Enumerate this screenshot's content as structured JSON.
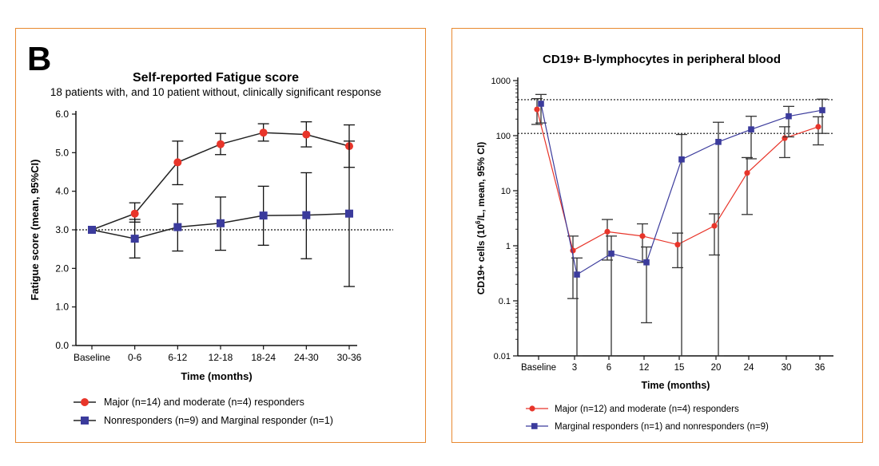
{
  "colors": {
    "frame": "#e8892f",
    "red": "#e8352a",
    "blue": "#3b3b9c",
    "axis": "#111111"
  },
  "chart_data": [
    {
      "type": "line",
      "panel_letter": "B",
      "title": "Self-reported Fatigue score",
      "subtitle": "18 patients with, and 10 patient without, clinically significant response",
      "xlabel": "Time (months)",
      "ylabel": "Fatigue score (mean, 95%CI)",
      "categories": [
        "Baseline",
        "0-6",
        "6-12",
        "12-18",
        "18-24",
        "24-30",
        "30-36"
      ],
      "ylim": [
        0,
        6
      ],
      "yticks": [
        "0.0",
        "1.0",
        "2.0",
        "3.0",
        "4.0",
        "5.0",
        "6.0"
      ],
      "reference_line": 3.0,
      "legend_position": "bottom",
      "series": [
        {
          "name": "Major (n=14) and moderate (n=4) responders",
          "color": "#e8352a",
          "marker": "circle",
          "values": [
            3.0,
            3.42,
            4.75,
            5.22,
            5.52,
            5.47,
            5.17
          ],
          "ci_low": [
            3.0,
            3.2,
            4.17,
            4.95,
            5.3,
            5.15,
            4.62
          ],
          "ci_high": [
            3.0,
            3.7,
            5.3,
            5.5,
            5.75,
            5.8,
            5.72
          ]
        },
        {
          "name": "Nonresponders (n=9) and Marginal responder (n=1)",
          "color": "#3b3b9c",
          "marker": "square",
          "values": [
            3.0,
            2.77,
            3.07,
            3.17,
            3.37,
            3.38,
            3.42
          ],
          "ci_low": [
            3.0,
            2.27,
            2.45,
            2.47,
            2.6,
            2.25,
            1.53
          ],
          "ci_high": [
            3.0,
            3.27,
            3.67,
            3.85,
            4.13,
            4.48,
            5.3
          ]
        }
      ]
    },
    {
      "type": "line",
      "title": "CD19+ B-lymphocytes in peripheral blood",
      "xlabel": "Time (months)",
      "ylabel_pre": "CD19+ cells (10",
      "ylabel_sup": "6",
      "ylabel_post": "/L, mean, 95% CI)",
      "y_scale": "log",
      "ylim": [
        0.01,
        1000
      ],
      "yticks": [
        "0.01",
        "0.1",
        "1",
        "10",
        "100",
        "1000"
      ],
      "categories": [
        "Baseline",
        "3",
        "6",
        "12",
        "15",
        "20",
        "24",
        "30",
        "36"
      ],
      "reference_lines": [
        110,
        450
      ],
      "legend_position": "bottom",
      "series": [
        {
          "name": "Major (n=12) and moderate (n=4) responders",
          "color": "#e8352a",
          "marker": "circle",
          "values": [
            300,
            0.82,
            1.8,
            1.5,
            1.05,
            2.3,
            21,
            90,
            145
          ],
          "ci_low": [
            160,
            0.11,
            0.55,
            0.5,
            0.4,
            0.68,
            3.7,
            40,
            68
          ],
          "ci_high": [
            470,
            1.5,
            3.0,
            2.5,
            1.7,
            3.8,
            40,
            145,
            220
          ]
        },
        {
          "name": "Marginal responders (n=1) and nonresponders (n=9)",
          "color": "#3b3b9c",
          "marker": "square",
          "values": [
            380,
            0.3,
            0.72,
            0.5,
            37,
            77,
            130,
            225,
            290
          ],
          "ci_low": [
            170,
            0.005,
            0.005,
            0.04,
            0.005,
            0.005,
            38,
            95,
            110
          ],
          "ci_high": [
            560,
            0.6,
            1.5,
            0.95,
            105,
            175,
            225,
            340,
            460
          ]
        }
      ]
    }
  ]
}
